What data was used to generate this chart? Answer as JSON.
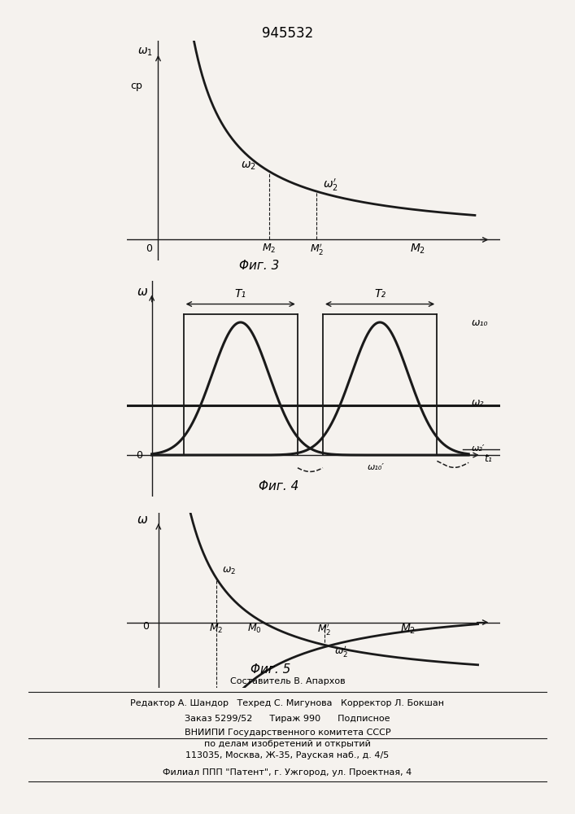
{
  "title": "945532",
  "fig3_ylabel1": "ω₁",
  "fig3_ylabel2": "cp",
  "fig3_curve_label1": "ω₂",
  "fig3_curve_label2": "ω₂′",
  "fig3_caption": "Φиг. 3",
  "fig4_ylabel": "ω",
  "fig4_caption": "Φиг. 4",
  "fig4_label_w10": "ω₁₀",
  "fig4_label_w2": "ω₂",
  "fig4_label_w10p": "ω₁₀′",
  "fig4_label_w2p": "ω₂′",
  "fig4_label_T1": "T₁",
  "fig4_label_T2": "T₂",
  "fig4_label_t": "t₁",
  "fig5_ylabel": "ω",
  "fig5_caption": "Φиг. 5",
  "fig5_label_w2": "ω₂",
  "fig5_label_w2p": "ω₂′",
  "footer_line1": "Составитель В. Апархов",
  "footer_line2": "Редактор А. Шандор   Техред С. Мигунова   Корректор Л. Бокшан",
  "footer_line3": "Заказ 5299/52      Тираж 990      Подписное",
  "footer_line4": "ВНИИПИ Государственного комитета СССР",
  "footer_line5": "по делам изобретений и открытий",
  "footer_line6": "113035, Москва, Ж-35, Рауская наб., д. 4/5",
  "footer_line7": "Филиал ППП \"Патент\", г. Ужгород, ул. Проектная, 4",
  "bg_color": "#f5f2ee",
  "line_color": "#1a1a1a"
}
